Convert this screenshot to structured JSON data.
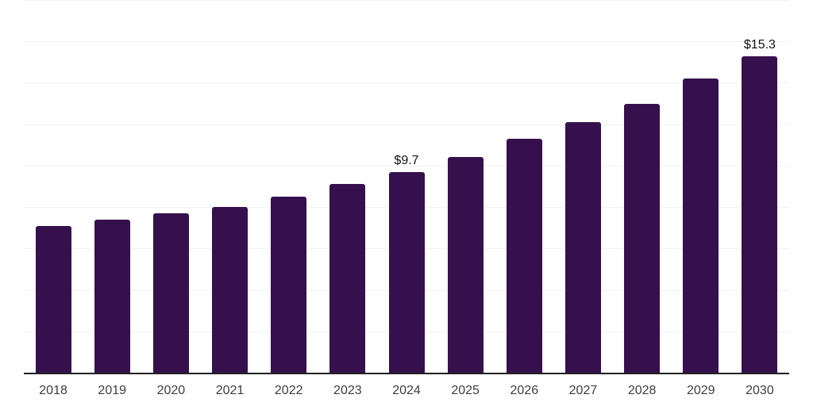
{
  "chart_data": {
    "type": "bar",
    "title": "",
    "xlabel": "",
    "ylabel": "",
    "categories": [
      "2018",
      "2019",
      "2020",
      "2021",
      "2022",
      "2023",
      "2024",
      "2025",
      "2026",
      "2027",
      "2028",
      "2029",
      "2030"
    ],
    "values": [
      7.1,
      7.4,
      7.7,
      8.0,
      8.5,
      9.1,
      9.7,
      10.4,
      11.3,
      12.1,
      13.0,
      14.2,
      15.3
    ],
    "bar_labels": {
      "2024": "$9.7",
      "2030": "$15.3"
    },
    "ylim": [
      0,
      18
    ],
    "grid_step": 2,
    "grid": "horizontal-only",
    "y_tick_labels_shown": false,
    "legend": "none",
    "colors": {
      "bar": "#36104d",
      "grid": "#f2f2f2",
      "axis_line": "#222222",
      "x_tick_label": "#3d3d3d",
      "bar_label": "#111111",
      "background": "#ffffff"
    }
  }
}
